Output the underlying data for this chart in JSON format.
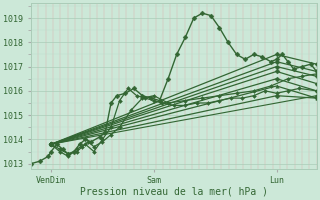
{
  "title": "",
  "xlabel": "Pression niveau de la mer( hPa )",
  "bg_color": "#cce8d8",
  "plot_bg_color": "#cce8d8",
  "grid_major_color": "#aaccb8",
  "grid_minor_color": "#bbddcc",
  "line_color": "#336633",
  "ylim": [
    1012.8,
    1019.6
  ],
  "yticks": [
    1013,
    1014,
    1015,
    1016,
    1017,
    1018,
    1019
  ],
  "xlim": [
    0.0,
    1.0
  ],
  "xtick_positions": [
    0.07,
    0.43,
    0.86
  ],
  "xtick_labels": [
    "VenDim",
    "Sam",
    "Lun"
  ],
  "series": [
    {
      "x": [
        0.0,
        0.03,
        0.06,
        0.07,
        0.09,
        0.11,
        0.13,
        0.15,
        0.17,
        0.19,
        0.21,
        0.24,
        0.26,
        0.28,
        0.3,
        0.33,
        0.36,
        0.39,
        0.42,
        0.45,
        0.48,
        0.51,
        0.54,
        0.57,
        0.6,
        0.63,
        0.66,
        0.69,
        0.72,
        0.75,
        0.78,
        0.81,
        0.84,
        0.86,
        0.88,
        0.9,
        0.92,
        0.95,
        0.98,
        1.0
      ],
      "y": [
        1013.0,
        1013.1,
        1013.3,
        1013.5,
        1013.8,
        1013.6,
        1013.4,
        1013.5,
        1013.8,
        1014.0,
        1013.9,
        1014.1,
        1014.3,
        1015.5,
        1015.8,
        1015.9,
        1016.1,
        1015.8,
        1015.7,
        1015.6,
        1016.5,
        1017.5,
        1018.2,
        1019.0,
        1019.2,
        1019.1,
        1018.6,
        1018.0,
        1017.5,
        1017.3,
        1017.5,
        1017.4,
        1017.2,
        1017.3,
        1017.5,
        1017.2,
        1016.9,
        1017.0,
        1017.1,
        1016.8
      ],
      "lw": 1.0,
      "ms": 2.5,
      "marker": "D"
    },
    {
      "x": [
        0.07,
        0.86,
        1.0
      ],
      "y": [
        1013.8,
        1017.5,
        1017.1
      ],
      "lw": 0.9,
      "ms": 2.5,
      "marker": "D"
    },
    {
      "x": [
        0.07,
        0.86,
        1.0
      ],
      "y": [
        1013.8,
        1017.2,
        1016.8
      ],
      "lw": 0.9,
      "ms": 2.5,
      "marker": "D"
    },
    {
      "x": [
        0.07,
        0.86,
        1.0
      ],
      "y": [
        1013.8,
        1017.0,
        1016.6
      ],
      "lw": 0.9,
      "ms": 2.5,
      "marker": "D"
    },
    {
      "x": [
        0.07,
        0.86,
        1.0
      ],
      "y": [
        1013.8,
        1016.8,
        1016.3
      ],
      "lw": 0.9,
      "ms": 2.5,
      "marker": "D"
    },
    {
      "x": [
        0.07,
        0.86,
        1.0
      ],
      "y": [
        1013.8,
        1016.5,
        1016.0
      ],
      "lw": 0.9,
      "ms": 2.5,
      "marker": "D"
    },
    {
      "x": [
        0.07,
        0.86,
        1.0
      ],
      "y": [
        1013.8,
        1016.2,
        1015.7
      ],
      "lw": 0.9,
      "ms": 2.5,
      "marker": "^"
    },
    {
      "x": [
        0.07,
        0.86,
        1.0
      ],
      "y": [
        1013.8,
        1015.8,
        1015.7
      ],
      "lw": 0.9,
      "ms": 2.5,
      "marker": "D"
    },
    {
      "x": [
        0.07,
        1.0
      ],
      "y": [
        1013.8,
        1015.8
      ],
      "lw": 0.8,
      "ms": 2.5,
      "marker": "D"
    },
    {
      "x": [
        0.07,
        0.1,
        0.13,
        0.16,
        0.19,
        0.22,
        0.25,
        0.28,
        0.31,
        0.34,
        0.37,
        0.4,
        0.43,
        0.46,
        0.5,
        0.54,
        0.58,
        0.62,
        0.66,
        0.7,
        0.74,
        0.78,
        0.82,
        0.86,
        0.9,
        0.94,
        1.0
      ],
      "y": [
        1013.8,
        1013.5,
        1013.3,
        1013.6,
        1013.8,
        1013.5,
        1014.0,
        1014.5,
        1015.6,
        1016.1,
        1015.8,
        1015.7,
        1015.6,
        1015.5,
        1015.4,
        1015.4,
        1015.5,
        1015.5,
        1015.6,
        1015.7,
        1015.7,
        1015.8,
        1016.0,
        1015.9,
        1016.0,
        1016.1,
        1016.0
      ],
      "lw": 0.9,
      "ms": 2.0,
      "marker": "D"
    },
    {
      "x": [
        0.07,
        0.1,
        0.13,
        0.16,
        0.18,
        0.2,
        0.22,
        0.25,
        0.28,
        0.31,
        0.35,
        0.39,
        0.43,
        0.48,
        0.54,
        0.6,
        0.66,
        0.72,
        0.78,
        0.84,
        0.9,
        0.95,
        1.0
      ],
      "y": [
        1013.8,
        1013.6,
        1013.4,
        1013.5,
        1013.7,
        1013.9,
        1013.7,
        1013.9,
        1014.2,
        1014.5,
        1015.2,
        1015.7,
        1015.8,
        1015.5,
        1015.6,
        1015.7,
        1015.8,
        1015.9,
        1016.0,
        1016.2,
        1016.5,
        1016.6,
        1016.7
      ],
      "lw": 0.9,
      "ms": 2.0,
      "marker": "D"
    }
  ]
}
